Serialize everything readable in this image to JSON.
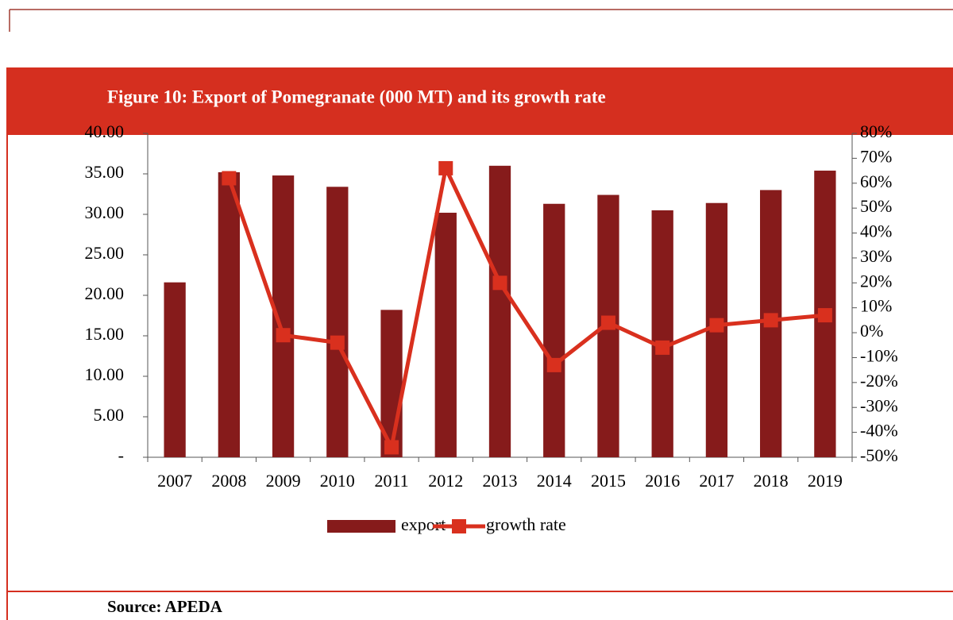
{
  "chart_data": {
    "type": "bar_line",
    "title": "Figure 10: Export of Pomegranate (000 MT) and its growth rate",
    "source": "Source: APEDA",
    "categories": [
      "2007",
      "2008",
      "2009",
      "2010",
      "2011",
      "2012",
      "2013",
      "2014",
      "2015",
      "2016",
      "2017",
      "2018",
      "2019"
    ],
    "series": [
      {
        "name": "export",
        "color": "#861b1b",
        "type": "bar",
        "values": [
          21.6,
          35.2,
          34.8,
          33.4,
          18.2,
          30.2,
          36.0,
          31.3,
          32.4,
          30.5,
          31.4,
          33.0,
          35.4
        ]
      },
      {
        "name": "growth rate",
        "color": "#d9301e",
        "type": "line",
        "axis": "y2",
        "values": [
          null,
          62,
          -1,
          -4,
          -46,
          66,
          20,
          -13,
          4,
          -6,
          3,
          5,
          7
        ]
      }
    ],
    "ylim": [
      0,
      40
    ],
    "yticks": [
      {
        "value": 0,
        "label": "-"
      },
      {
        "value": 5,
        "label": "5.00"
      },
      {
        "value": 10,
        "label": "10.00"
      },
      {
        "value": 15,
        "label": "15.00"
      },
      {
        "value": 20,
        "label": "20.00"
      },
      {
        "value": 25,
        "label": "25.00"
      },
      {
        "value": 30,
        "label": "30.00"
      },
      {
        "value": 35,
        "label": "35.00"
      },
      {
        "value": 40,
        "label": "40.00"
      }
    ],
    "y2lim": [
      -50,
      80
    ],
    "y2ticks": [
      {
        "value": -50,
        "label": "-50%"
      },
      {
        "value": -40,
        "label": "-40%"
      },
      {
        "value": -30,
        "label": "-30%"
      },
      {
        "value": -20,
        "label": "-20%"
      },
      {
        "value": -10,
        "label": "-10%"
      },
      {
        "value": 0,
        "label": "0%"
      },
      {
        "value": 10,
        "label": "10%"
      },
      {
        "value": 20,
        "label": "20%"
      },
      {
        "value": 30,
        "label": "30%"
      },
      {
        "value": 40,
        "label": "40%"
      },
      {
        "value": 50,
        "label": "50%"
      },
      {
        "value": 60,
        "label": "60%"
      },
      {
        "value": 70,
        "label": "70%"
      },
      {
        "value": 80,
        "label": "80%"
      }
    ],
    "legend": "bottom"
  }
}
